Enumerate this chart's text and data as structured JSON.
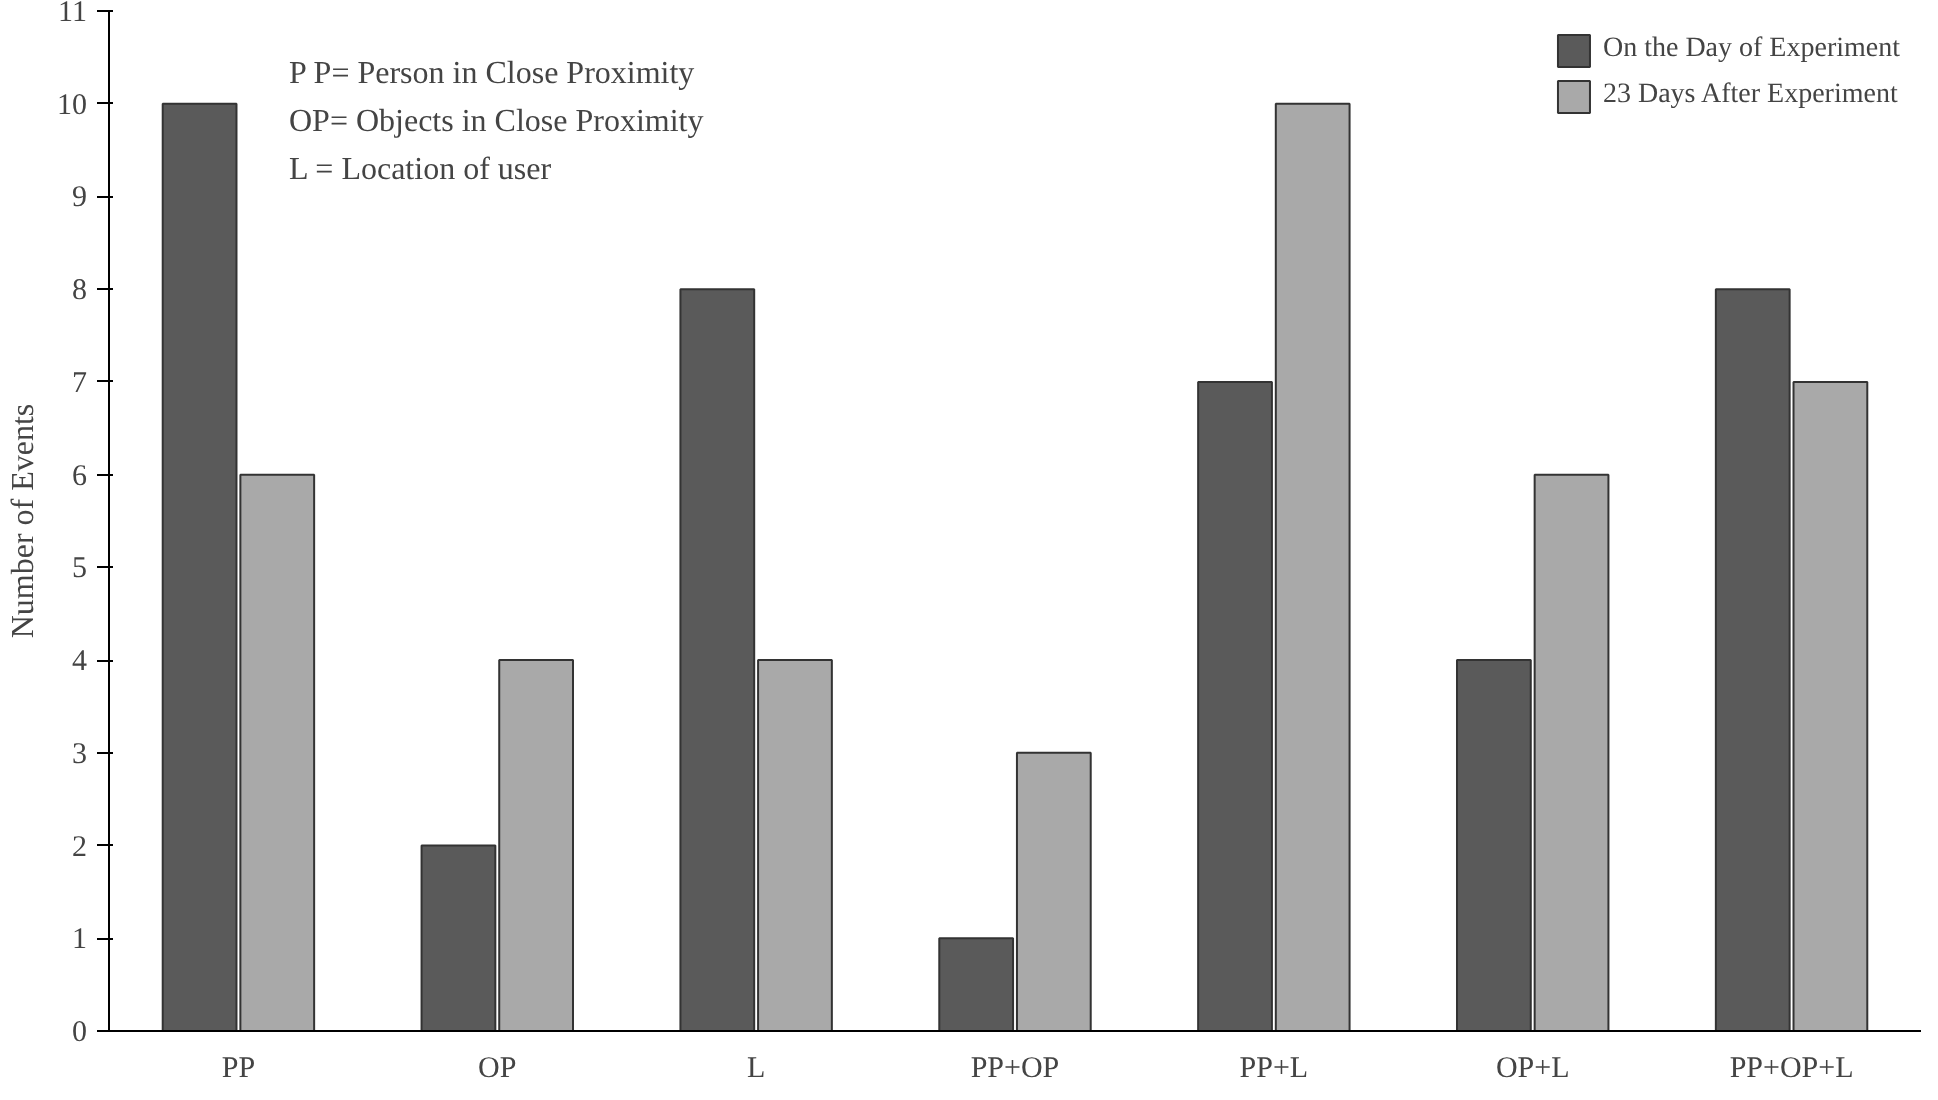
{
  "chart_data": {
    "type": "bar",
    "ylabel": "Number of Events",
    "categories": [
      "PP",
      "OP",
      "L",
      "PP+OP",
      "PP+L",
      "OP+L",
      "PP+OP+L"
    ],
    "series": [
      {
        "name": "On the Day of Experiment",
        "color": "#5a5a5a",
        "values": [
          10,
          2,
          8,
          1,
          7,
          4,
          8
        ]
      },
      {
        "name": "23 Days After Experiment",
        "color": "#a9a9a9",
        "values": [
          6,
          4,
          4,
          3,
          10,
          6,
          7
        ]
      }
    ],
    "ylim": [
      0,
      11
    ],
    "yticks": [
      0,
      1,
      2,
      3,
      4,
      5,
      6,
      7,
      8,
      9,
      10,
      11
    ],
    "grid": false,
    "legend": "top right",
    "annotations": [
      "P P= Person in Close Proximity",
      "OP= Objects in Close Proximity",
      "L   = Location of user"
    ]
  }
}
